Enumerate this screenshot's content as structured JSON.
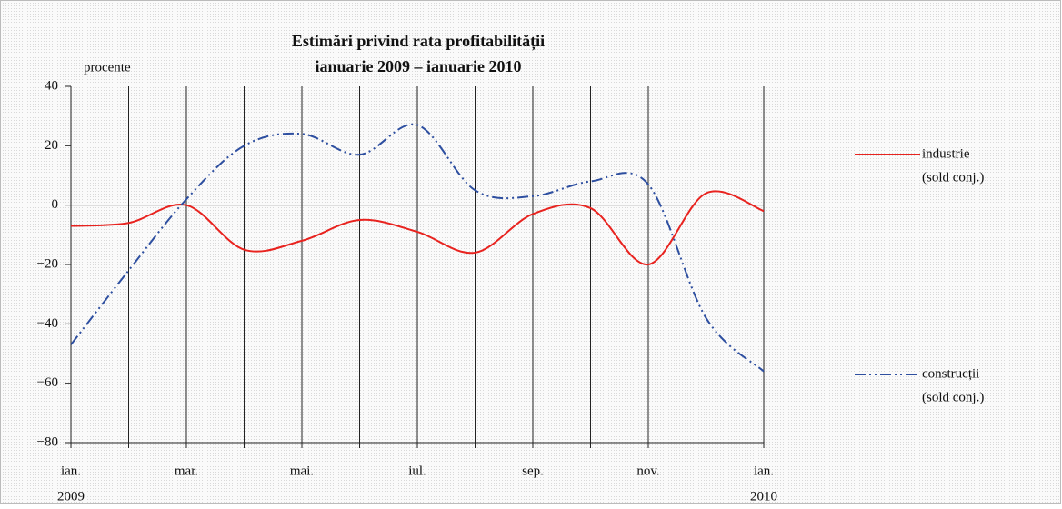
{
  "chart_data": {
    "type": "line",
    "title": "Estimări privind rata profitabilității",
    "subtitle": "ianuarie 2009 – ianuarie 2010",
    "y_label": "procente",
    "categories": [
      "ian.",
      null,
      "mar.",
      null,
      "mai.",
      null,
      "iul.",
      null,
      "sep.",
      null,
      "nov.",
      null,
      "ian."
    ],
    "years": [
      "2009",
      null,
      null,
      null,
      null,
      null,
      null,
      null,
      null,
      null,
      null,
      null,
      "2010"
    ],
    "series": [
      {
        "name": "industrie",
        "note": "(sold conj.)",
        "color": "#e8231f",
        "dash": "solid",
        "values": [
          -7,
          -6,
          0,
          -15,
          -12,
          -5,
          -9,
          -16,
          -3,
          -1,
          -20,
          4,
          -2
        ]
      },
      {
        "name": "construcții",
        "note": "(sold conj.)",
        "color": "#2e4fa0",
        "dash": "dash-dot-dot",
        "values": [
          -47,
          -22,
          2,
          20,
          24,
          17,
          27,
          5,
          3,
          8,
          7,
          -38,
          -56
        ]
      }
    ],
    "ylim": [
      -80,
      40
    ],
    "yticks": [
      {
        "value": -80,
        "label": "−80"
      },
      {
        "value": -60,
        "label": "−60"
      },
      {
        "value": -40,
        "label": "−40"
      },
      {
        "value": -20,
        "label": "−20"
      },
      0,
      20,
      40
    ],
    "grid": "vertical",
    "legend": "right"
  }
}
